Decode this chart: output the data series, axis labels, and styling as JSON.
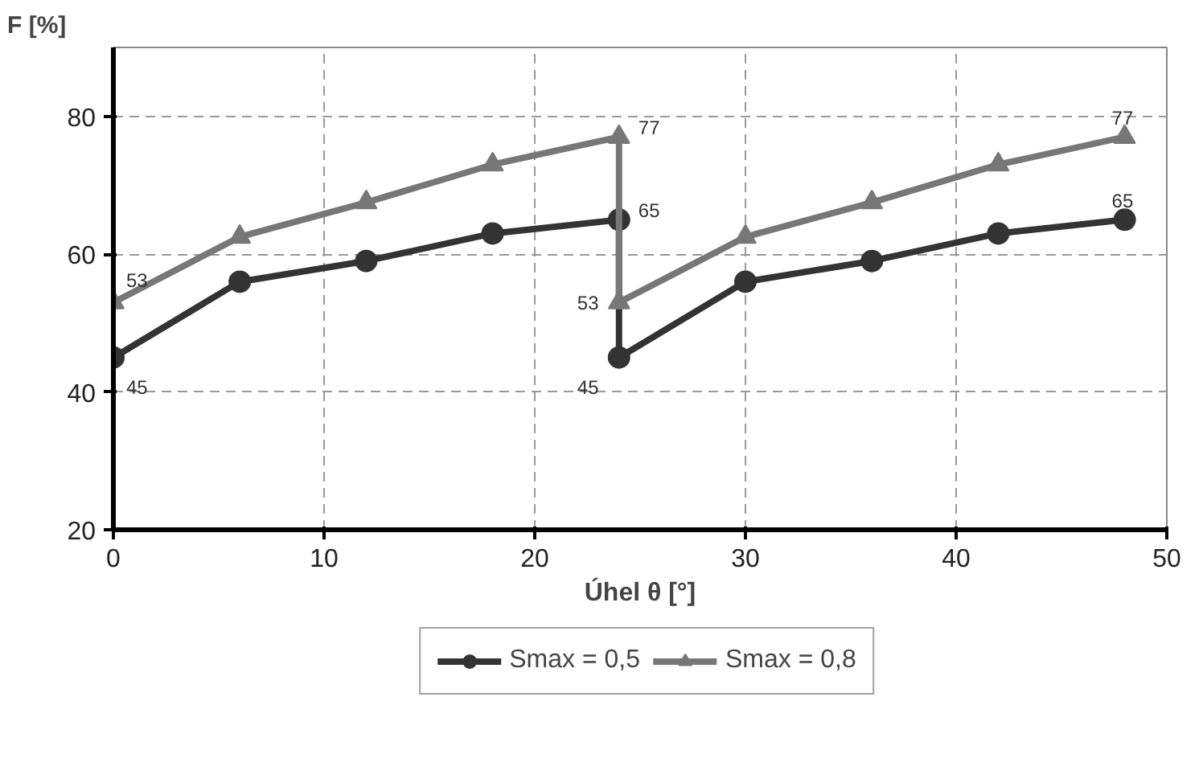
{
  "chart_data": {
    "type": "line",
    "xlabel": "Úhel θ [°]",
    "ylabel": "F [%]",
    "xlim": [
      0,
      50
    ],
    "xticks": [
      0,
      10,
      20,
      30,
      40,
      50
    ],
    "ylim": [
      20,
      90
    ],
    "yticks": [
      20,
      40,
      60,
      80
    ],
    "grid": true,
    "legend": "bottom",
    "series": [
      {
        "name": "Smax = 0,5",
        "color": "#333333",
        "marker": "circle",
        "x": [
          0,
          6,
          12,
          18,
          24,
          24,
          30,
          36,
          42,
          48
        ],
        "values": [
          45,
          56,
          59,
          63,
          65,
          45,
          56,
          59,
          63,
          65
        ],
        "value_labels": [
          "45",
          null,
          null,
          null,
          "65",
          "45",
          null,
          null,
          null,
          "65"
        ]
      },
      {
        "name": "Smax = 0,8",
        "color": "#777777",
        "marker": "triangle",
        "x": [
          0,
          6,
          12,
          18,
          24,
          24,
          30,
          36,
          42,
          48
        ],
        "values": [
          53,
          62.5,
          67.5,
          73,
          77,
          53,
          62.5,
          67.5,
          73,
          77
        ],
        "value_labels": [
          "53",
          null,
          null,
          null,
          "77",
          "53",
          null,
          null,
          null,
          "77"
        ]
      }
    ]
  }
}
